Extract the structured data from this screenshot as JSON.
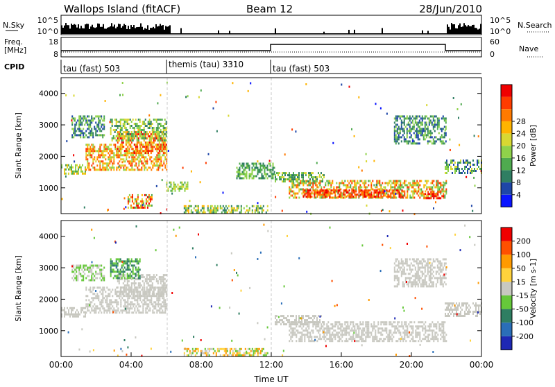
{
  "header": {
    "station": "Wallops Island (fitACF)",
    "beam": "Beam 12",
    "date": "28/Jun/2010"
  },
  "noise_panel": {
    "left_label": "N.Sky",
    "right_label": "N.Search",
    "left_ticks": [
      "10^5",
      "10^0"
    ],
    "right_ticks": [
      "10^5",
      "10^0"
    ]
  },
  "freq_panel": {
    "left_label_1": "Freq.",
    "left_label_2": "[MHz]",
    "right_label": "Nave",
    "left_ticks": [
      "18",
      "8"
    ],
    "right_ticks": [
      "60",
      "0"
    ]
  },
  "cpid_panel": {
    "label": "CPID",
    "segments": [
      {
        "label": "tau (fast) 503",
        "start_h": 0,
        "end_h": 6
      },
      {
        "label": "themis (tau) 3310",
        "start_h": 6,
        "end_h": 12
      },
      {
        "label": "tau (fast) 503",
        "start_h": 12,
        "end_h": 24
      }
    ]
  },
  "chart_data": [
    {
      "type": "heatmap",
      "panel": "power",
      "ylabel": "Slant Range [km]",
      "yticks": [
        "1000",
        "2000",
        "3000",
        "4000"
      ],
      "ylim": [
        180,
        4500
      ],
      "xlim": [
        0,
        24
      ],
      "colorbar": {
        "label": "Power [dB]",
        "ticks": [
          "4",
          "8",
          "12",
          "16",
          "20",
          "24",
          "28"
        ],
        "colors": [
          "#0a14ff",
          "#1e46a8",
          "#2f7e62",
          "#4faa4f",
          "#8fd24a",
          "#d8d832",
          "#ffb400",
          "#ff7a00",
          "#ff3c00",
          "#f00000"
        ]
      },
      "regions": [
        {
          "t0": 0.0,
          "t1": 1.4,
          "r0": 1450,
          "r1": 1750,
          "c": [
            3,
            6
          ]
        },
        {
          "t0": 1.4,
          "t1": 6.0,
          "r0": 1600,
          "r1": 2400,
          "c": [
            4,
            8
          ]
        },
        {
          "t0": 3.2,
          "t1": 6.0,
          "r0": 2100,
          "r1": 2800,
          "c": [
            5,
            9
          ]
        },
        {
          "t0": 2.8,
          "t1": 6.0,
          "r0": 2500,
          "r1": 3200,
          "c": [
            2,
            5
          ]
        },
        {
          "t0": 0.6,
          "t1": 2.5,
          "r0": 2600,
          "r1": 3300,
          "c": [
            1,
            4
          ]
        },
        {
          "t0": 3.8,
          "t1": 5.2,
          "r0": 350,
          "r1": 800,
          "c": [
            3,
            9
          ]
        },
        {
          "t0": 6.0,
          "t1": 7.2,
          "r0": 900,
          "r1": 1200,
          "c": [
            3,
            5
          ]
        },
        {
          "t0": 7.0,
          "t1": 11.8,
          "r0": 250,
          "r1": 450,
          "c": [
            2,
            6
          ]
        },
        {
          "t0": 10.0,
          "t1": 12.2,
          "r0": 1300,
          "r1": 1800,
          "c": [
            2,
            4
          ]
        },
        {
          "t0": 13.0,
          "t1": 22.0,
          "r0": 700,
          "r1": 1250,
          "c": [
            3,
            8
          ]
        },
        {
          "t0": 13.8,
          "t1": 19.5,
          "r0": 700,
          "r1": 950,
          "c": [
            7,
            9
          ]
        },
        {
          "t0": 12.2,
          "t1": 15.0,
          "r0": 1200,
          "r1": 1500,
          "c": [
            2,
            5
          ]
        },
        {
          "t0": 19.0,
          "t1": 22.0,
          "r0": 2400,
          "r1": 3300,
          "c": [
            1,
            4
          ]
        },
        {
          "t0": 20.6,
          "t1": 21.8,
          "r0": 680,
          "r1": 900,
          "c": [
            7,
            9
          ]
        },
        {
          "t0": 21.9,
          "t1": 24.0,
          "r0": 1450,
          "r1": 1900,
          "c": [
            1,
            5
          ]
        }
      ]
    },
    {
      "type": "heatmap",
      "panel": "velocity",
      "ylabel": "Slant Range [km]",
      "yticks": [
        "1000",
        "2000",
        "3000",
        "4000"
      ],
      "ylim": [
        180,
        4500
      ],
      "xlim": [
        0,
        24
      ],
      "xticks": [
        "00:00",
        "04:00",
        "08:00",
        "12:00",
        "16:00",
        "20:00",
        "00:00"
      ],
      "xlabel": "Time UT",
      "colorbar": {
        "label": "Velocity [m s-1]",
        "ticks": [
          "200",
          "100",
          "50",
          "15",
          "-15",
          "-50",
          "-100",
          "-200"
        ],
        "colors": [
          "#1e28b4",
          "#2a6eb8",
          "#2f7e62",
          "#66c83a",
          "#c8c8c0",
          "#ffd23c",
          "#ff9a00",
          "#ff5000",
          "#f00000"
        ]
      },
      "regions": [
        {
          "t0": 0.0,
          "t1": 1.4,
          "r0": 1450,
          "r1": 1750,
          "c": [
            4,
            4
          ]
        },
        {
          "t0": 1.4,
          "t1": 6.0,
          "r0": 1600,
          "r1": 2400,
          "c": [
            4,
            4
          ]
        },
        {
          "t0": 3.2,
          "t1": 6.0,
          "r0": 2100,
          "r1": 2800,
          "c": [
            4,
            4
          ]
        },
        {
          "t0": 2.8,
          "t1": 4.5,
          "r0": 2700,
          "r1": 3300,
          "c": [
            2,
            3
          ]
        },
        {
          "t0": 0.6,
          "t1": 2.5,
          "r0": 2600,
          "r1": 3100,
          "c": [
            3,
            4
          ]
        },
        {
          "t0": 13.0,
          "t1": 22.0,
          "r0": 650,
          "r1": 1300,
          "c": [
            4,
            4
          ]
        },
        {
          "t0": 12.2,
          "t1": 15.0,
          "r0": 1200,
          "r1": 1500,
          "c": [
            4,
            4
          ]
        },
        {
          "t0": 7.0,
          "t1": 11.8,
          "r0": 250,
          "r1": 450,
          "c": [
            3,
            6
          ]
        },
        {
          "t0": 19.0,
          "t1": 22.0,
          "r0": 2400,
          "r1": 3300,
          "c": [
            4,
            4
          ]
        },
        {
          "t0": 21.9,
          "t1": 24.0,
          "r0": 1450,
          "r1": 1900,
          "c": [
            4,
            4
          ]
        }
      ]
    }
  ],
  "colors": {
    "frame": "#000000",
    "divider": "#c8c8c8"
  }
}
